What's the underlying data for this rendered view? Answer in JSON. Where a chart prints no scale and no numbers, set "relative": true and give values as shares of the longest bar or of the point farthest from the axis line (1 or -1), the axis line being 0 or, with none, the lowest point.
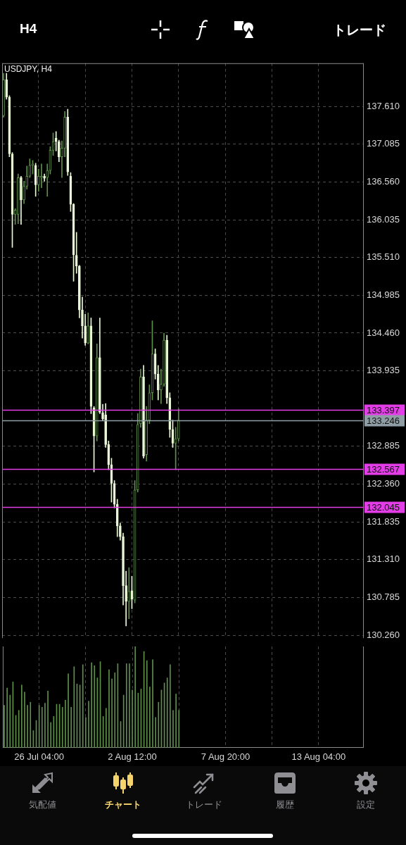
{
  "chart_data": [
    {
      "type": "candlestick",
      "title": "USDJPY, H4",
      "categories": [
        null,
        null,
        null,
        null,
        null,
        null,
        null,
        null,
        null,
        null,
        null,
        null,
        null,
        null,
        null,
        null,
        null,
        null,
        null,
        null,
        null,
        null,
        null,
        null,
        null,
        null,
        null,
        null,
        null,
        null,
        null,
        null,
        null,
        null,
        null,
        null,
        null,
        null,
        null,
        null,
        null,
        null,
        null,
        null,
        null,
        null,
        null,
        null,
        null,
        null,
        null,
        null,
        null,
        null,
        null,
        null,
        null,
        null,
        null,
        null,
        null,
        null,
        null,
        null,
        null,
        null,
        null,
        null,
        null,
        null,
        null,
        null,
        null,
        null,
        null,
        null,
        null,
        null,
        null,
        null,
        null,
        null,
        null,
        null,
        null,
        null,
        null,
        null,
        null,
        null,
        null,
        null,
        null,
        null,
        null,
        null,
        null,
        null,
        null,
        null,
        null,
        null,
        null,
        null,
        null,
        null,
        null,
        null,
        null,
        null,
        null,
        null,
        null,
        null,
        null,
        null,
        null,
        null,
        null,
        null,
        null,
        null,
        null,
        null
      ],
      "ohlc": [
        [
          137.48,
          138.07,
          137.46,
          137.98
        ],
        [
          137.98,
          138.07,
          137.71,
          137.74
        ],
        [
          137.74,
          137.76,
          136.91,
          136.95
        ],
        [
          136.95,
          136.97,
          135.65,
          136.11
        ],
        [
          136.11,
          136.19,
          135.97,
          136.17
        ],
        [
          136.11,
          136.67,
          135.98,
          136.62
        ],
        [
          136.62,
          136.64,
          135.97,
          136.31
        ],
        [
          136.31,
          136.57,
          136.26,
          136.5
        ],
        [
          136.5,
          136.78,
          136.46,
          136.64
        ],
        [
          136.64,
          136.88,
          136.62,
          136.79
        ],
        [
          136.79,
          136.86,
          136.67,
          136.81
        ],
        [
          136.79,
          136.82,
          136.36,
          136.52
        ],
        [
          136.52,
          136.74,
          136.43,
          136.64
        ],
        [
          136.62,
          136.81,
          136.48,
          136.64
        ],
        [
          136.64,
          136.67,
          136.57,
          136.61
        ],
        [
          136.62,
          136.81,
          136.36,
          136.72
        ],
        [
          136.72,
          137.05,
          136.67,
          137.0
        ],
        [
          137.0,
          137.24,
          136.93,
          137.12
        ],
        [
          137.17,
          137.26,
          136.99,
          137.12
        ],
        [
          137.12,
          137.14,
          136.84,
          136.91
        ],
        [
          136.91,
          137.13,
          136.62,
          137.03
        ],
        [
          137.03,
          137.54,
          136.91,
          137.46
        ],
        [
          137.46,
          137.57,
          136.65,
          136.7
        ],
        [
          136.64,
          136.69,
          136.15,
          136.25
        ],
        [
          136.25,
          136.26,
          135.18,
          135.55
        ],
        [
          135.54,
          135.86,
          135.29,
          135.39
        ],
        [
          135.39,
          135.4,
          134.67,
          134.78
        ],
        [
          134.78,
          134.96,
          134.39,
          134.56
        ],
        [
          134.56,
          134.72,
          134.29,
          134.32
        ],
        [
          134.32,
          134.74,
          134.31,
          134.56
        ],
        [
          134.56,
          134.67,
          133.34,
          133.44
        ],
        [
          133.42,
          133.44,
          132.53,
          133.03
        ],
        [
          133.03,
          134.31,
          132.96,
          134.12
        ],
        [
          134.12,
          134.67,
          133.34,
          133.36
        ],
        [
          133.35,
          133.47,
          133.25,
          133.27
        ],
        [
          133.32,
          133.48,
          132.87,
          132.91
        ],
        [
          132.91,
          132.96,
          132.56,
          132.63
        ],
        [
          132.63,
          132.72,
          132.11,
          132.37
        ],
        [
          132.37,
          132.41,
          132.03,
          132.08
        ],
        [
          132.08,
          132.15,
          131.63,
          131.78
        ],
        [
          131.78,
          131.82,
          131.58,
          131.63
        ],
        [
          131.63,
          131.68,
          130.68,
          130.95
        ],
        [
          130.95,
          131.15,
          130.39,
          130.73
        ],
        [
          130.73,
          131.2,
          130.49,
          130.87
        ],
        [
          130.88,
          131.08,
          130.63,
          130.76
        ],
        [
          130.75,
          132.41,
          130.71,
          132.28
        ],
        [
          132.28,
          133.34,
          132.25,
          133.19
        ],
        [
          133.2,
          133.96,
          133.15,
          133.85
        ],
        [
          133.85,
          134.01,
          132.72,
          132.75
        ],
        [
          132.77,
          133.44,
          132.68,
          133.25
        ],
        [
          133.25,
          133.74,
          133.2,
          133.63
        ],
        [
          133.63,
          134.63,
          133.53,
          134.17
        ],
        [
          134.17,
          134.24,
          133.82,
          133.89
        ],
        [
          133.89,
          134.01,
          133.53,
          133.67
        ],
        [
          133.67,
          133.96,
          133.48,
          133.75
        ],
        [
          133.75,
          134.46,
          133.72,
          134.36
        ],
        [
          134.36,
          134.43,
          133.48,
          133.56
        ],
        [
          133.56,
          133.63,
          133.01,
          133.12
        ],
        [
          133.12,
          133.25,
          132.87,
          132.93
        ],
        [
          132.93,
          133.15,
          132.56,
          132.99
        ],
        [
          132.99,
          133.41,
          132.96,
          133.25
        ],
        null,
        null,
        null,
        null,
        null,
        null,
        null,
        null,
        null,
        null,
        null,
        null,
        null,
        null,
        null,
        null,
        null,
        null,
        null,
        null,
        null,
        null,
        null,
        null,
        null,
        null,
        null,
        null,
        null,
        null,
        null,
        null,
        null,
        null,
        null,
        null,
        null,
        null,
        null,
        null,
        null,
        null,
        null,
        null,
        null,
        null,
        null,
        null,
        null,
        null,
        null,
        null,
        null,
        null,
        null,
        null,
        null,
        null,
        null,
        null,
        null,
        null,
        null
      ],
      "colors": [
        "#5f8f4b",
        "#e9f7d6",
        "#e9f7d6",
        "#e9f7d6",
        "#5f8f4b",
        "#5f8f4b",
        "#e9f7d6",
        "#5f8f4b",
        "#5f8f4b",
        "#5f8f4b",
        "#5f8f4b",
        "#e9f7d6",
        "#5f8f4b",
        "#5f8f4b",
        "#e9f7d6",
        "#5f8f4b",
        "#5f8f4b",
        "#5f8f4b",
        "#e9f7d6",
        "#e9f7d6",
        "#5f8f4b",
        "#5f8f4b",
        "#e9f7d6",
        "#e9f7d6",
        "#e9f7d6",
        "#e9f7d6",
        "#e9f7d6",
        "#e9f7d6",
        "#e9f7d6",
        "#5f8f4b",
        "#e9f7d6",
        "#e9f7d6",
        "#5f8f4b",
        "#e9f7d6",
        "#e9f7d6",
        "#e9f7d6",
        "#e9f7d6",
        "#e9f7d6",
        "#e9f7d6",
        "#e9f7d6",
        "#e9f7d6",
        "#e9f7d6",
        "#e9f7d6",
        "#5f8f4b",
        "#e9f7d6",
        "#5f8f4b",
        "#5f8f4b",
        "#5f8f4b",
        "#e9f7d6",
        "#5f8f4b",
        "#5f8f4b",
        "#5f8f4b",
        "#e9f7d6",
        "#e9f7d6",
        "#5f8f4b",
        "#5f8f4b",
        "#e9f7d6",
        "#e9f7d6",
        "#e9f7d6",
        "#5f8f4b",
        "#5f8f4b",
        null,
        null,
        null,
        null,
        null,
        null,
        null,
        null,
        null,
        null,
        null,
        null,
        null,
        null,
        null,
        null,
        null,
        null,
        null,
        null,
        null,
        null,
        null,
        null,
        null,
        null,
        null,
        null,
        null,
        null,
        null,
        null,
        null,
        null,
        null,
        null,
        null,
        null,
        null,
        null,
        null,
        null,
        null,
        null,
        null,
        null,
        null,
        null,
        null,
        null,
        null,
        null,
        null,
        null,
        null,
        null,
        null,
        null,
        null,
        null,
        null,
        null,
        null
      ],
      "ylim": [
        130.22,
        138.21
      ],
      "yticks": [
        {
          "value": 137.61,
          "label": "137.610"
        },
        {
          "value": 137.085,
          "label": "137.085"
        },
        {
          "value": 136.56,
          "label": "136.560"
        },
        {
          "value": 136.035,
          "label": "136.035"
        },
        {
          "value": 135.51,
          "label": "135.510"
        },
        {
          "value": 134.985,
          "label": "134.985"
        },
        {
          "value": 134.46,
          "label": "134.460"
        },
        {
          "value": 133.935,
          "label": "133.935"
        },
        {
          "value": 132.885,
          "label": "132.885"
        },
        {
          "value": 132.36,
          "label": "132.360"
        },
        {
          "value": 131.835,
          "label": "131.835"
        },
        {
          "value": 131.31,
          "label": "131.310"
        },
        {
          "value": 130.785,
          "label": "130.785"
        },
        {
          "value": 130.26,
          "label": "130.260"
        }
      ],
      "grid": true,
      "tick_labels": "y",
      "ref_lines": [
        {
          "axis": "y",
          "value": 133.397,
          "label": "133.397",
          "color": "#e23de6"
        },
        {
          "axis": "y",
          "value": 133.246,
          "label": "133.246",
          "color": "#8f9ea4"
        },
        {
          "axis": "y",
          "value": 132.567,
          "label": "132.567",
          "color": "#e23de6"
        },
        {
          "axis": "y",
          "value": 132.045,
          "label": "132.045",
          "color": "#e23de6"
        }
      ],
      "annotations": [
        "H4",
        "トレード",
        "気配値",
        "チャート",
        "トレード",
        "履歴",
        "設定"
      ]
    },
    {
      "type": "bar",
      "relative": true,
      "color": "#5f8f4b",
      "grid": true,
      "tick_labels": "x",
      "categories": [
        null,
        null,
        null,
        null,
        null,
        null,
        null,
        null,
        null,
        null,
        null,
        null,
        "26 Jul 04:00",
        null,
        null,
        null,
        null,
        null,
        null,
        null,
        null,
        null,
        null,
        null,
        null,
        null,
        null,
        null,
        null,
        null,
        null,
        null,
        null,
        null,
        null,
        null,
        null,
        null,
        null,
        null,
        null,
        null,
        null,
        null,
        "2 Aug 12:00",
        null,
        null,
        null,
        null,
        null,
        null,
        null,
        null,
        null,
        null,
        null,
        null,
        null,
        null,
        null,
        null,
        null,
        null,
        null,
        null,
        null,
        null,
        null,
        null,
        null,
        null,
        null,
        null,
        null,
        null,
        null,
        "7 Aug 20:00",
        null,
        null,
        null,
        null,
        null,
        null,
        null,
        null,
        null,
        null,
        null,
        null,
        null,
        null,
        null,
        null,
        null,
        null,
        null,
        null,
        null,
        null,
        null,
        null,
        null,
        null,
        null,
        null,
        null,
        null,
        null,
        "13 Aug 04:00",
        null,
        null,
        null,
        null,
        null,
        null,
        null,
        null,
        null,
        null,
        null,
        null,
        null,
        null,
        null
      ],
      "values": [
        0.42,
        0.59,
        0.52,
        0.65,
        0.32,
        0.37,
        0.62,
        0.55,
        0.42,
        0.45,
        0.17,
        0.27,
        0.42,
        0.4,
        0.44,
        0.56,
        0.25,
        0.31,
        0.43,
        0.43,
        0.4,
        0.47,
        0.73,
        0.4,
        0.8,
        0.63,
        0.62,
        0.82,
        0.3,
        0.46,
        0.84,
        0.81,
        0.69,
        0.85,
        0.31,
        0.39,
        0.77,
        0.68,
        0.74,
        0.83,
        0.26,
        0.52,
        0.83,
        0.83,
        0.57,
        1,
        0.54,
        0.58,
        0.95,
        0.86,
        0.6,
        0.87,
        0.3,
        0.45,
        0.57,
        0.64,
        0.69,
        0.82,
        0.37,
        0.53,
        0.37,
        null,
        null,
        null,
        null,
        null,
        null,
        null,
        null,
        null,
        null,
        null,
        null,
        null,
        null,
        null,
        null,
        null,
        null,
        null,
        null,
        null,
        null,
        null,
        null,
        null,
        null,
        null,
        null,
        null,
        null,
        null,
        null,
        null,
        null,
        null,
        null,
        null,
        null,
        null,
        null,
        null,
        null,
        null,
        null,
        null,
        null,
        null,
        null,
        null,
        null,
        null,
        null,
        null,
        null,
        null,
        null,
        null,
        null,
        null,
        null,
        null,
        null,
        null
      ]
    }
  ]
}
